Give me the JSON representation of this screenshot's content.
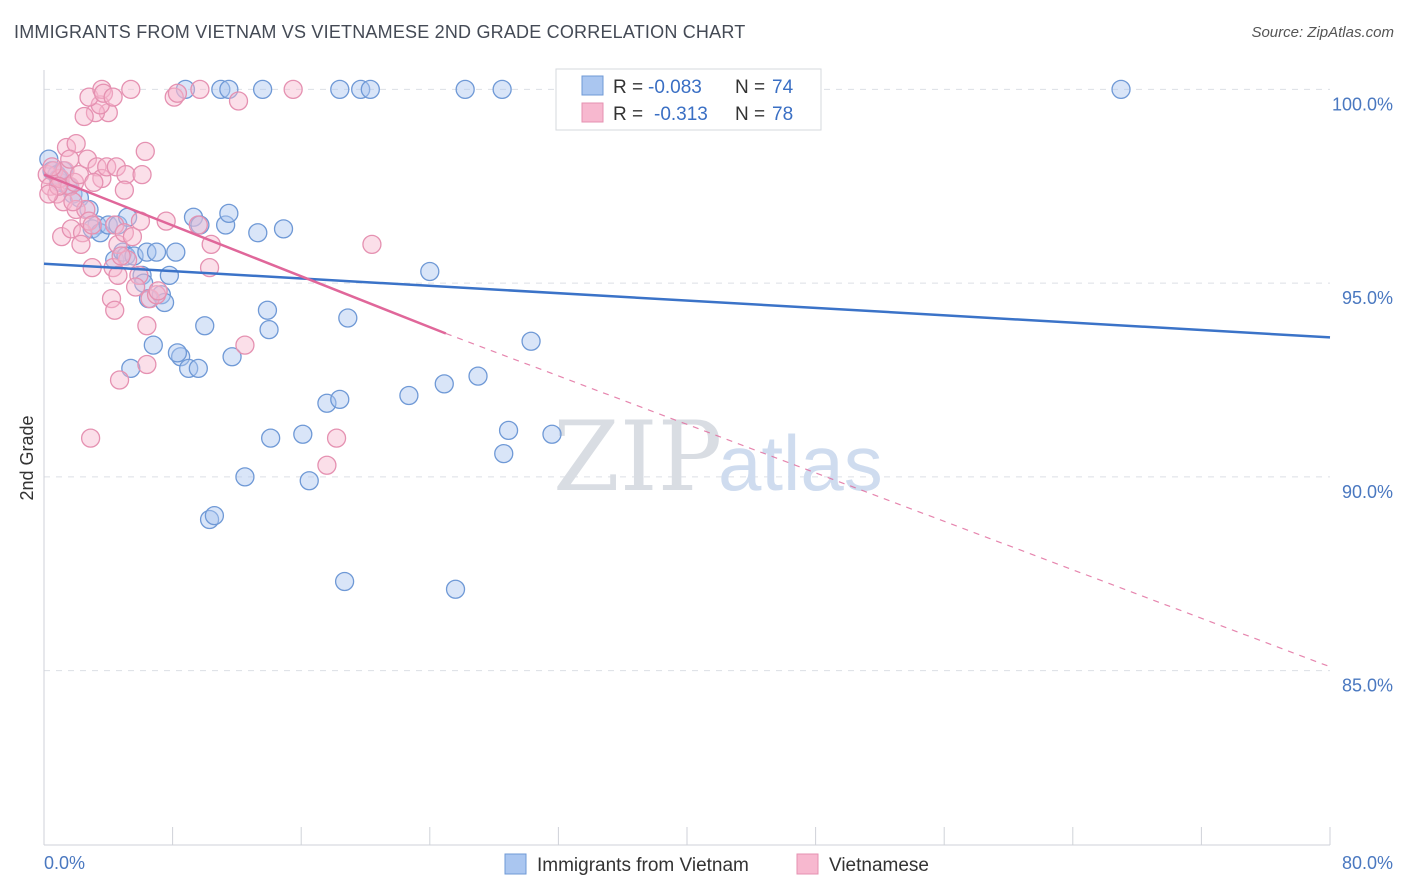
{
  "title": "IMMIGRANTS FROM VIETNAM VS VIETNAMESE 2ND GRADE CORRELATION CHART",
  "source": "Source: ZipAtlas.com",
  "watermark": {
    "zip": "ZIP",
    "atlas": "atlas"
  },
  "colors": {
    "blue": "#3b73c8",
    "blue_fill": "#aac6f0",
    "pink": "#e0679a",
    "pink_fill": "#f7b8cf",
    "grid": "#dcdfe5"
  },
  "chart_data": {
    "type": "scatter",
    "title": "IMMIGRANTS FROM VIETNAM VS VIETNAMESE 2ND GRADE CORRELATION CHART",
    "xlabel": "",
    "ylabel": "2nd Grade",
    "xlim": [
      0,
      80
    ],
    "ylim": [
      80.5,
      100.5
    ],
    "x_tick_labels": [
      "0.0%",
      "80.0%"
    ],
    "y_ticks": [
      100,
      95,
      90,
      85
    ],
    "y_tick_labels": [
      "100.0%",
      "95.0%",
      "90.0%",
      "85.0%"
    ],
    "legend": {
      "entries": [
        {
          "r_label": "R =",
          "r_value": "-0.083",
          "n_label": "N =",
          "n_value": "74"
        },
        {
          "r_label": "R =",
          "r_value": "-0.313",
          "n_label": "N =",
          "n_value": "78"
        }
      ]
    },
    "series": [
      {
        "name": "Immigrants from Vietnam",
        "color": "#3b73c8",
        "trend": {
          "x0": 0,
          "y0": 95.5,
          "x1": 80,
          "y1": 93.6
        },
        "points": [
          [
            0.3,
            98.2
          ],
          [
            0.5,
            97.9
          ],
          [
            0.8,
            97.8
          ],
          [
            1.0,
            97.6
          ],
          [
            1.2,
            97.9
          ],
          [
            1.5,
            97.5
          ],
          [
            1.8,
            97.3
          ],
          [
            2.2,
            97.2
          ],
          [
            2.8,
            96.9
          ],
          [
            3.3,
            96.5
          ],
          [
            3.0,
            96.4
          ],
          [
            3.5,
            96.3
          ],
          [
            4.0,
            96.5
          ],
          [
            4.6,
            96.5
          ],
          [
            5.2,
            96.7
          ],
          [
            4.4,
            95.6
          ],
          [
            4.9,
            95.8
          ],
          [
            5.1,
            95.7
          ],
          [
            5.6,
            95.7
          ],
          [
            6.4,
            95.8
          ],
          [
            7.0,
            95.8
          ],
          [
            8.2,
            95.8
          ],
          [
            6.1,
            95.2
          ],
          [
            7.8,
            95.2
          ],
          [
            6.2,
            95.0
          ],
          [
            6.5,
            94.6
          ],
          [
            7.3,
            94.7
          ],
          [
            7.5,
            94.5
          ],
          [
            9.3,
            96.7
          ],
          [
            9.7,
            96.5
          ],
          [
            11.3,
            96.5
          ],
          [
            11.5,
            96.8
          ],
          [
            13.3,
            96.3
          ],
          [
            14.9,
            96.4
          ],
          [
            6.8,
            93.4
          ],
          [
            8.5,
            93.1
          ],
          [
            8.3,
            93.2
          ],
          [
            9.0,
            92.8
          ],
          [
            9.6,
            92.8
          ],
          [
            10.0,
            93.9
          ],
          [
            11.7,
            93.1
          ],
          [
            13.9,
            94.3
          ],
          [
            14.0,
            93.8
          ],
          [
            18.9,
            94.1
          ],
          [
            24.0,
            95.3
          ],
          [
            30.3,
            93.5
          ],
          [
            5.4,
            92.8
          ],
          [
            17.6,
            91.9
          ],
          [
            18.4,
            92.0
          ],
          [
            22.7,
            92.1
          ],
          [
            24.9,
            92.4
          ],
          [
            27.0,
            92.6
          ],
          [
            14.1,
            91.0
          ],
          [
            16.1,
            91.1
          ],
          [
            28.9,
            91.2
          ],
          [
            31.6,
            91.1
          ],
          [
            28.6,
            90.6
          ],
          [
            12.5,
            90.0
          ],
          [
            16.5,
            89.9
          ],
          [
            10.3,
            88.9
          ],
          [
            10.6,
            89.0
          ],
          [
            18.7,
            87.3
          ],
          [
            25.6,
            87.1
          ],
          [
            8.8,
            100.0
          ],
          [
            11.0,
            100.0
          ],
          [
            11.5,
            100.0
          ],
          [
            13.6,
            100.0
          ],
          [
            18.4,
            100.0
          ],
          [
            19.7,
            100.0
          ],
          [
            20.3,
            100.0
          ],
          [
            26.2,
            100.0
          ],
          [
            28.5,
            100.0
          ],
          [
            67.0,
            100.0
          ],
          [
            0.9,
            97.7
          ]
        ]
      },
      {
        "name": "Vietnamese",
        "color": "#e0679a",
        "trend": {
          "x0": 0,
          "y0": 97.8,
          "x1": 25,
          "y1": 93.7
        },
        "trend_dashed": {
          "x0": 25,
          "y0": 93.7,
          "x1": 80,
          "y1": 85.1
        },
        "points": [
          [
            0.2,
            97.8
          ],
          [
            0.4,
            97.5
          ],
          [
            0.6,
            97.9
          ],
          [
            0.8,
            97.3
          ],
          [
            1.0,
            97.7
          ],
          [
            1.2,
            97.1
          ],
          [
            1.3,
            97.9
          ],
          [
            1.6,
            97.5
          ],
          [
            1.9,
            97.6
          ],
          [
            2.2,
            97.8
          ],
          [
            2.0,
            96.9
          ],
          [
            2.6,
            96.9
          ],
          [
            1.1,
            96.2
          ],
          [
            1.7,
            96.4
          ],
          [
            2.4,
            96.3
          ],
          [
            2.8,
            96.6
          ],
          [
            2.3,
            96.0
          ],
          [
            3.0,
            96.5
          ],
          [
            1.4,
            98.5
          ],
          [
            2.0,
            98.6
          ],
          [
            2.7,
            98.2
          ],
          [
            3.3,
            98.0
          ],
          [
            3.6,
            97.7
          ],
          [
            3.9,
            98.0
          ],
          [
            4.5,
            98.0
          ],
          [
            5.1,
            97.8
          ],
          [
            6.1,
            97.8
          ],
          [
            5.0,
            97.4
          ],
          [
            4.0,
            99.4
          ],
          [
            3.2,
            99.4
          ],
          [
            3.5,
            99.6
          ],
          [
            2.5,
            99.3
          ],
          [
            2.8,
            99.8
          ],
          [
            3.6,
            100.0
          ],
          [
            3.7,
            99.9
          ],
          [
            4.3,
            99.8
          ],
          [
            5.4,
            100.0
          ],
          [
            8.1,
            99.8
          ],
          [
            8.3,
            99.9
          ],
          [
            9.7,
            100.0
          ],
          [
            12.1,
            99.7
          ],
          [
            15.5,
            100.0
          ],
          [
            6.3,
            98.4
          ],
          [
            4.4,
            96.5
          ],
          [
            4.6,
            96.0
          ],
          [
            5.0,
            96.3
          ],
          [
            5.5,
            96.2
          ],
          [
            5.2,
            95.6
          ],
          [
            4.3,
            95.4
          ],
          [
            4.6,
            95.2
          ],
          [
            5.9,
            95.2
          ],
          [
            7.6,
            96.6
          ],
          [
            9.6,
            96.5
          ],
          [
            10.4,
            96.0
          ],
          [
            10.3,
            95.4
          ],
          [
            5.7,
            94.9
          ],
          [
            4.2,
            94.6
          ],
          [
            4.4,
            94.3
          ],
          [
            6.6,
            94.6
          ],
          [
            7.0,
            94.7
          ],
          [
            6.4,
            93.9
          ],
          [
            6.4,
            92.9
          ],
          [
            12.5,
            93.4
          ],
          [
            4.7,
            92.5
          ],
          [
            3.0,
            95.4
          ],
          [
            20.4,
            96.0
          ],
          [
            18.2,
            91.0
          ],
          [
            17.6,
            90.3
          ],
          [
            2.9,
            91.0
          ],
          [
            1.6,
            98.2
          ],
          [
            0.5,
            98.0
          ],
          [
            0.9,
            97.5
          ],
          [
            1.8,
            97.1
          ],
          [
            3.1,
            97.6
          ],
          [
            0.3,
            97.3
          ],
          [
            4.8,
            95.7
          ],
          [
            7.1,
            94.8
          ],
          [
            6.0,
            96.6
          ]
        ]
      }
    ]
  }
}
